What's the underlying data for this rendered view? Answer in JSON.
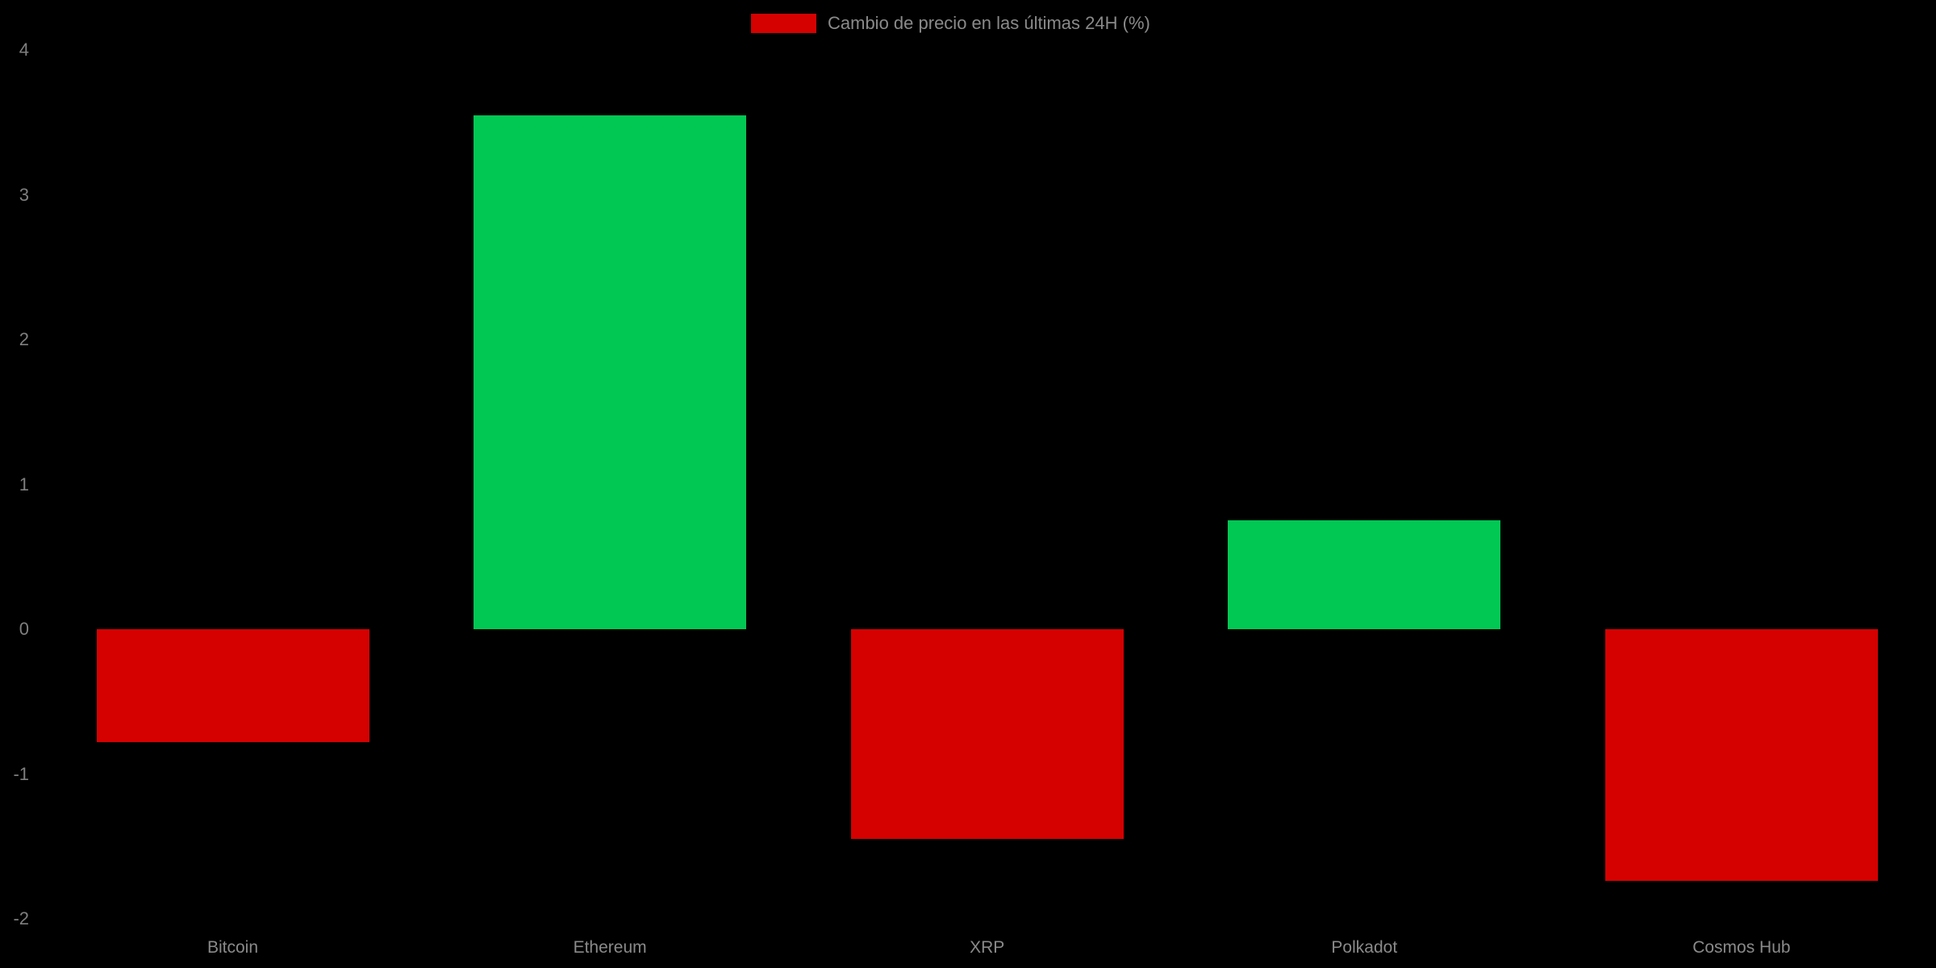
{
  "chart_data": {
    "type": "bar",
    "title": "",
    "xlabel": "",
    "ylabel": "",
    "categories": [
      "Bitcoin",
      "Ethereum",
      "XRP",
      "Polkadot",
      "Cosmos Hub"
    ],
    "values": [
      -0.78,
      3.55,
      -1.45,
      0.75,
      -1.74
    ],
    "yticks": [
      4,
      3,
      2,
      1,
      0,
      -1,
      -2
    ],
    "ylim": [
      -2.35,
      4.35
    ],
    "grid": false,
    "legend": {
      "label": "Cambio de precio en las últimas 24H (%)",
      "position": "top-center",
      "swatch_color": "#d50000"
    },
    "colors": {
      "positive": "#00c853",
      "negative": "#d50000",
      "background": "#000000",
      "ytick_label": "#7f7f7f",
      "xtick_label": "#8a8a8a"
    }
  }
}
